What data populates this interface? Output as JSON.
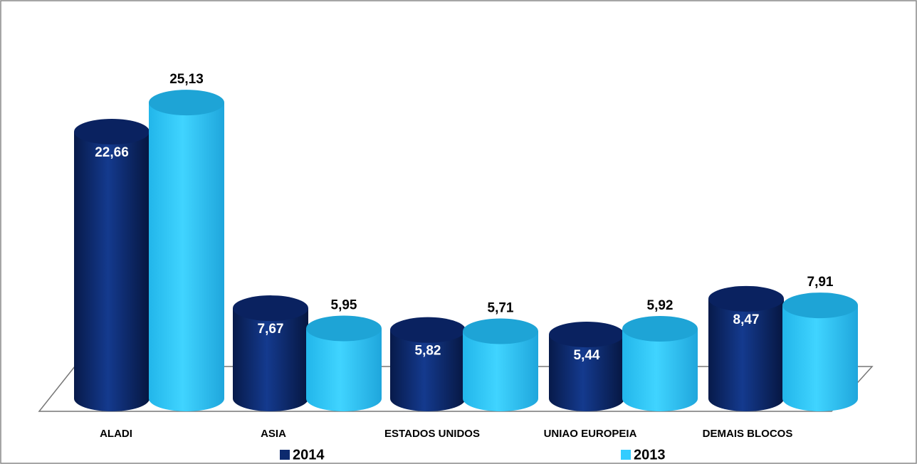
{
  "chart_data": {
    "type": "bar",
    "categories": [
      "ALADI",
      "ASIA",
      "ESTADOS UNIDOS",
      "UNIAO EUROPEIA",
      "DEMAIS BLOCOS"
    ],
    "series": [
      {
        "name": "2014",
        "color": "#0d2a6e",
        "values": [
          22.66,
          7.67,
          5.82,
          5.44,
          8.47
        ],
        "value_labels": [
          "22,66",
          "7,67",
          "5,82",
          "5,44",
          "8,47"
        ]
      },
      {
        "name": "2013",
        "color": "#33ccff",
        "values": [
          25.13,
          5.95,
          5.71,
          5.92,
          7.91
        ],
        "value_labels": [
          "25,13",
          "5,95",
          "5,71",
          "5,92",
          "7,91"
        ]
      }
    ]
  }
}
